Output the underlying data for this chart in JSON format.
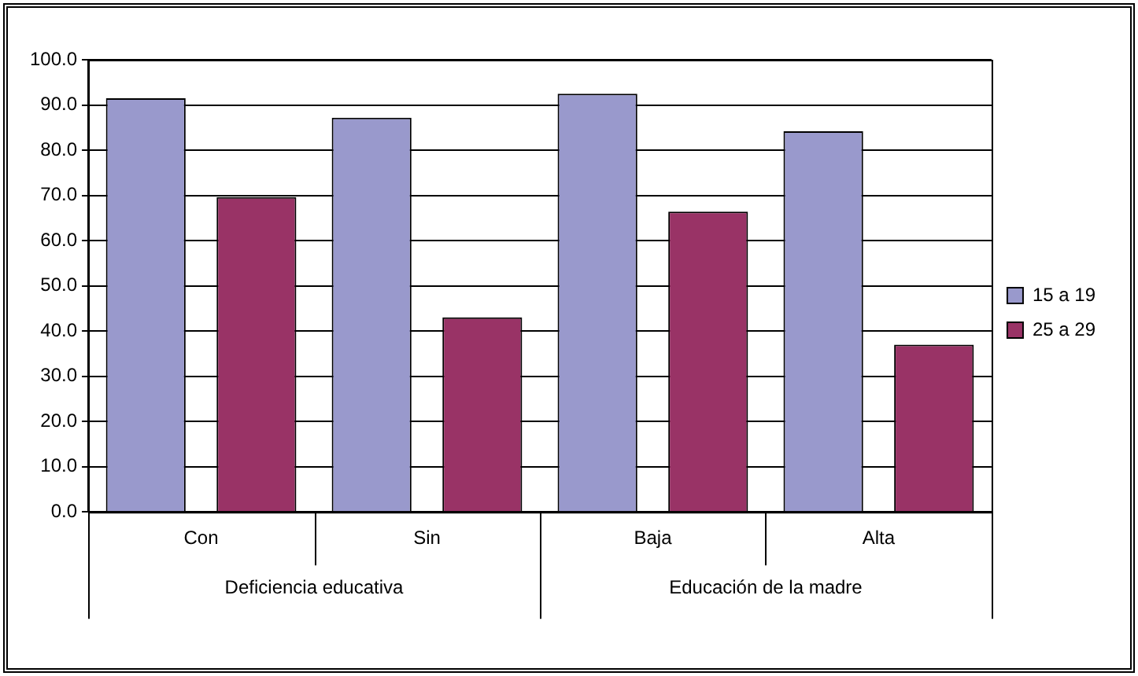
{
  "chart_data": {
    "type": "bar",
    "categories": [
      "Con",
      "Sin",
      "Baja",
      "Alta"
    ],
    "series": [
      {
        "name": "15 a 19",
        "color": "#9999cc",
        "values": [
          91.5,
          87.2,
          92.5,
          84.2
        ]
      },
      {
        "name": "25 a 29",
        "color": "#993366",
        "values": [
          69.6,
          43.0,
          66.4,
          37.0
        ]
      }
    ],
    "ylim": [
      0,
      100
    ],
    "yticks": [
      {
        "value": 0,
        "label": "0.0"
      },
      {
        "value": 10,
        "label": "10.0"
      },
      {
        "value": 20,
        "label": "20.0"
      },
      {
        "value": 30,
        "label": "30.0"
      },
      {
        "value": 40,
        "label": "40.0"
      },
      {
        "value": 50,
        "label": "50.0"
      },
      {
        "value": 60,
        "label": "60.0"
      },
      {
        "value": 70,
        "label": "70.0"
      },
      {
        "value": 80,
        "label": "80.0"
      },
      {
        "value": 90,
        "label": "90.0"
      },
      {
        "value": 100,
        "label": "100.0"
      }
    ],
    "annotations": [
      "Deficiencia educativa",
      "Educación de la madre"
    ],
    "grid": "y",
    "legend": "right"
  }
}
